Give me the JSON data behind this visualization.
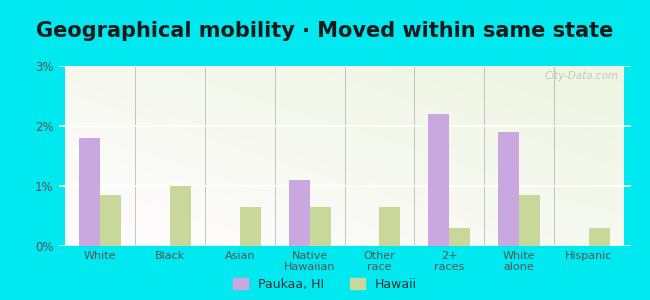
{
  "title": "Geographical mobility · Moved within same state",
  "categories": [
    "White",
    "Black",
    "Asian",
    "Native\nHawaiian",
    "Other\nrace",
    "2+\nraces",
    "White\nalone",
    "Hispanic"
  ],
  "paukaa_values": [
    1.8,
    0.0,
    0.0,
    1.1,
    0.0,
    2.2,
    1.9,
    0.0
  ],
  "hawaii_values": [
    0.85,
    1.0,
    0.65,
    0.65,
    0.65,
    0.3,
    0.85,
    0.3
  ],
  "paukaa_color": "#c9a8e0",
  "hawaii_color": "#c8d89a",
  "outer_background": "#00e8f0",
  "ylim": [
    0,
    3.0
  ],
  "yticks": [
    0,
    1,
    2,
    3
  ],
  "ytick_labels": [
    "0%",
    "1%",
    "2%",
    "3%"
  ],
  "legend_paukaa": "Paukaa, HI",
  "legend_hawaii": "Hawaii",
  "title_fontsize": 15,
  "bar_width": 0.3,
  "watermark": "City-Data.com"
}
